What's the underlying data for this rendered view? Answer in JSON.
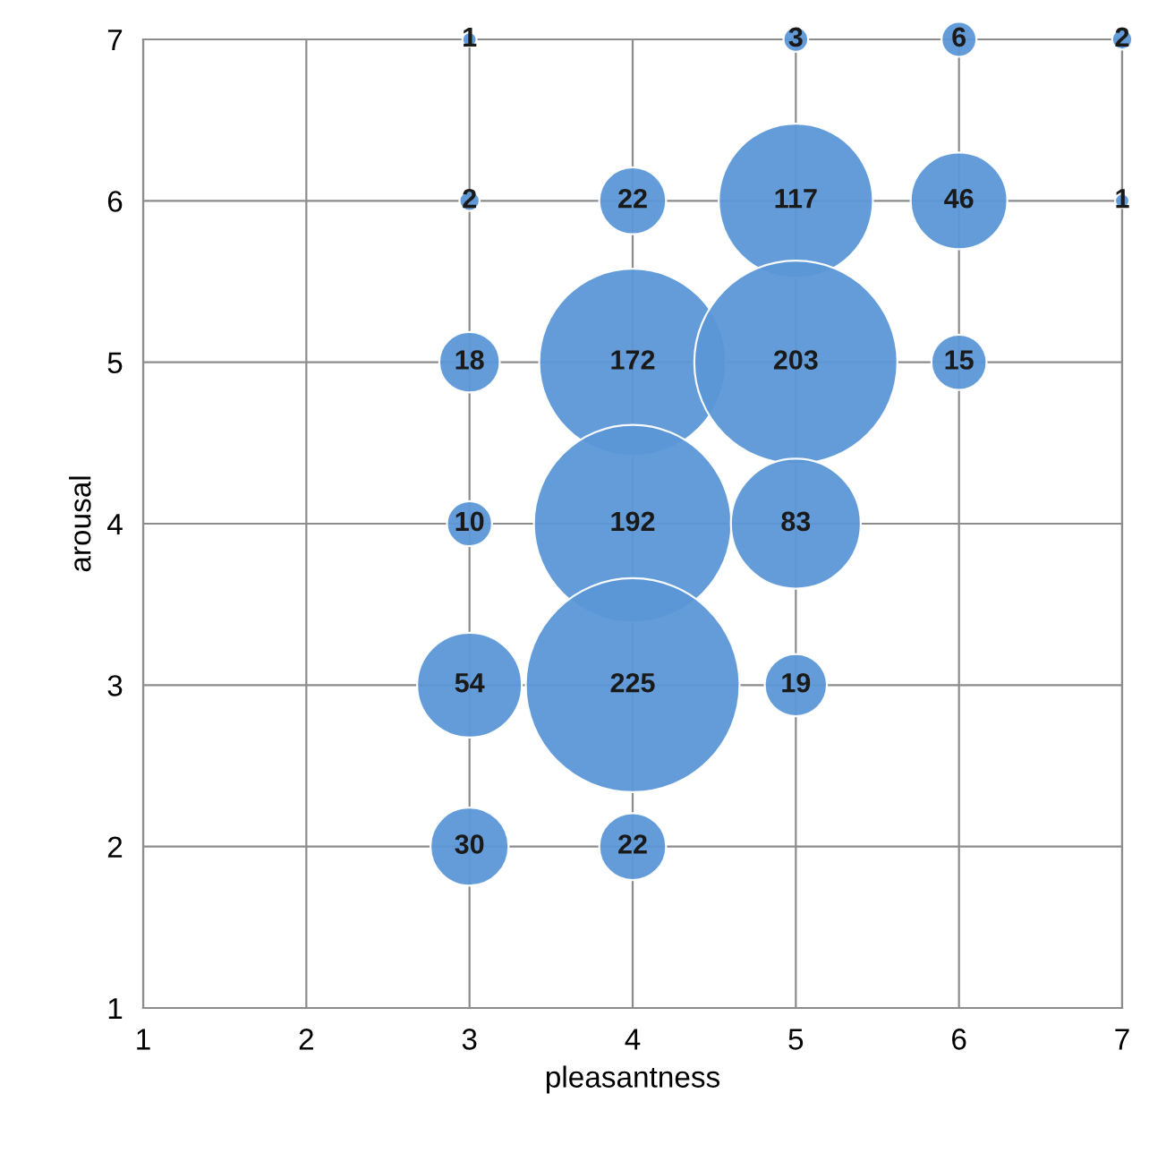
{
  "chart_data": {
    "type": "bubble",
    "xlabel": "pleasantness",
    "ylabel": "arousal",
    "x": [
      3,
      5,
      6,
      7,
      3,
      4,
      5,
      6,
      7,
      3,
      4,
      5,
      6,
      3,
      4,
      5,
      3,
      4,
      5,
      3,
      4
    ],
    "values": [
      7,
      7,
      7,
      7,
      6,
      6,
      6,
      6,
      6,
      5,
      5,
      5,
      5,
      4,
      4,
      4,
      3,
      3,
      3,
      2,
      2
    ],
    "sizes": [
      1,
      3,
      6,
      2,
      2,
      22,
      117,
      46,
      1,
      18,
      172,
      203,
      15,
      10,
      192,
      83,
      54,
      225,
      19,
      30,
      22
    ],
    "value_labels": [
      "1",
      "3",
      "6",
      "2",
      "2",
      "22",
      "117",
      "46",
      "1",
      "18",
      "172",
      "203",
      "15",
      "10",
      "192",
      "83",
      "54",
      "225",
      "19",
      "30",
      "22"
    ],
    "color": "#5b97d6",
    "xlim": [
      1,
      7
    ],
    "ylim": [
      1,
      7
    ],
    "xticks": [
      1,
      2,
      3,
      4,
      5,
      6,
      7
    ],
    "yticks": [
      1,
      2,
      3,
      4,
      5,
      6,
      7
    ],
    "grid": true
  }
}
